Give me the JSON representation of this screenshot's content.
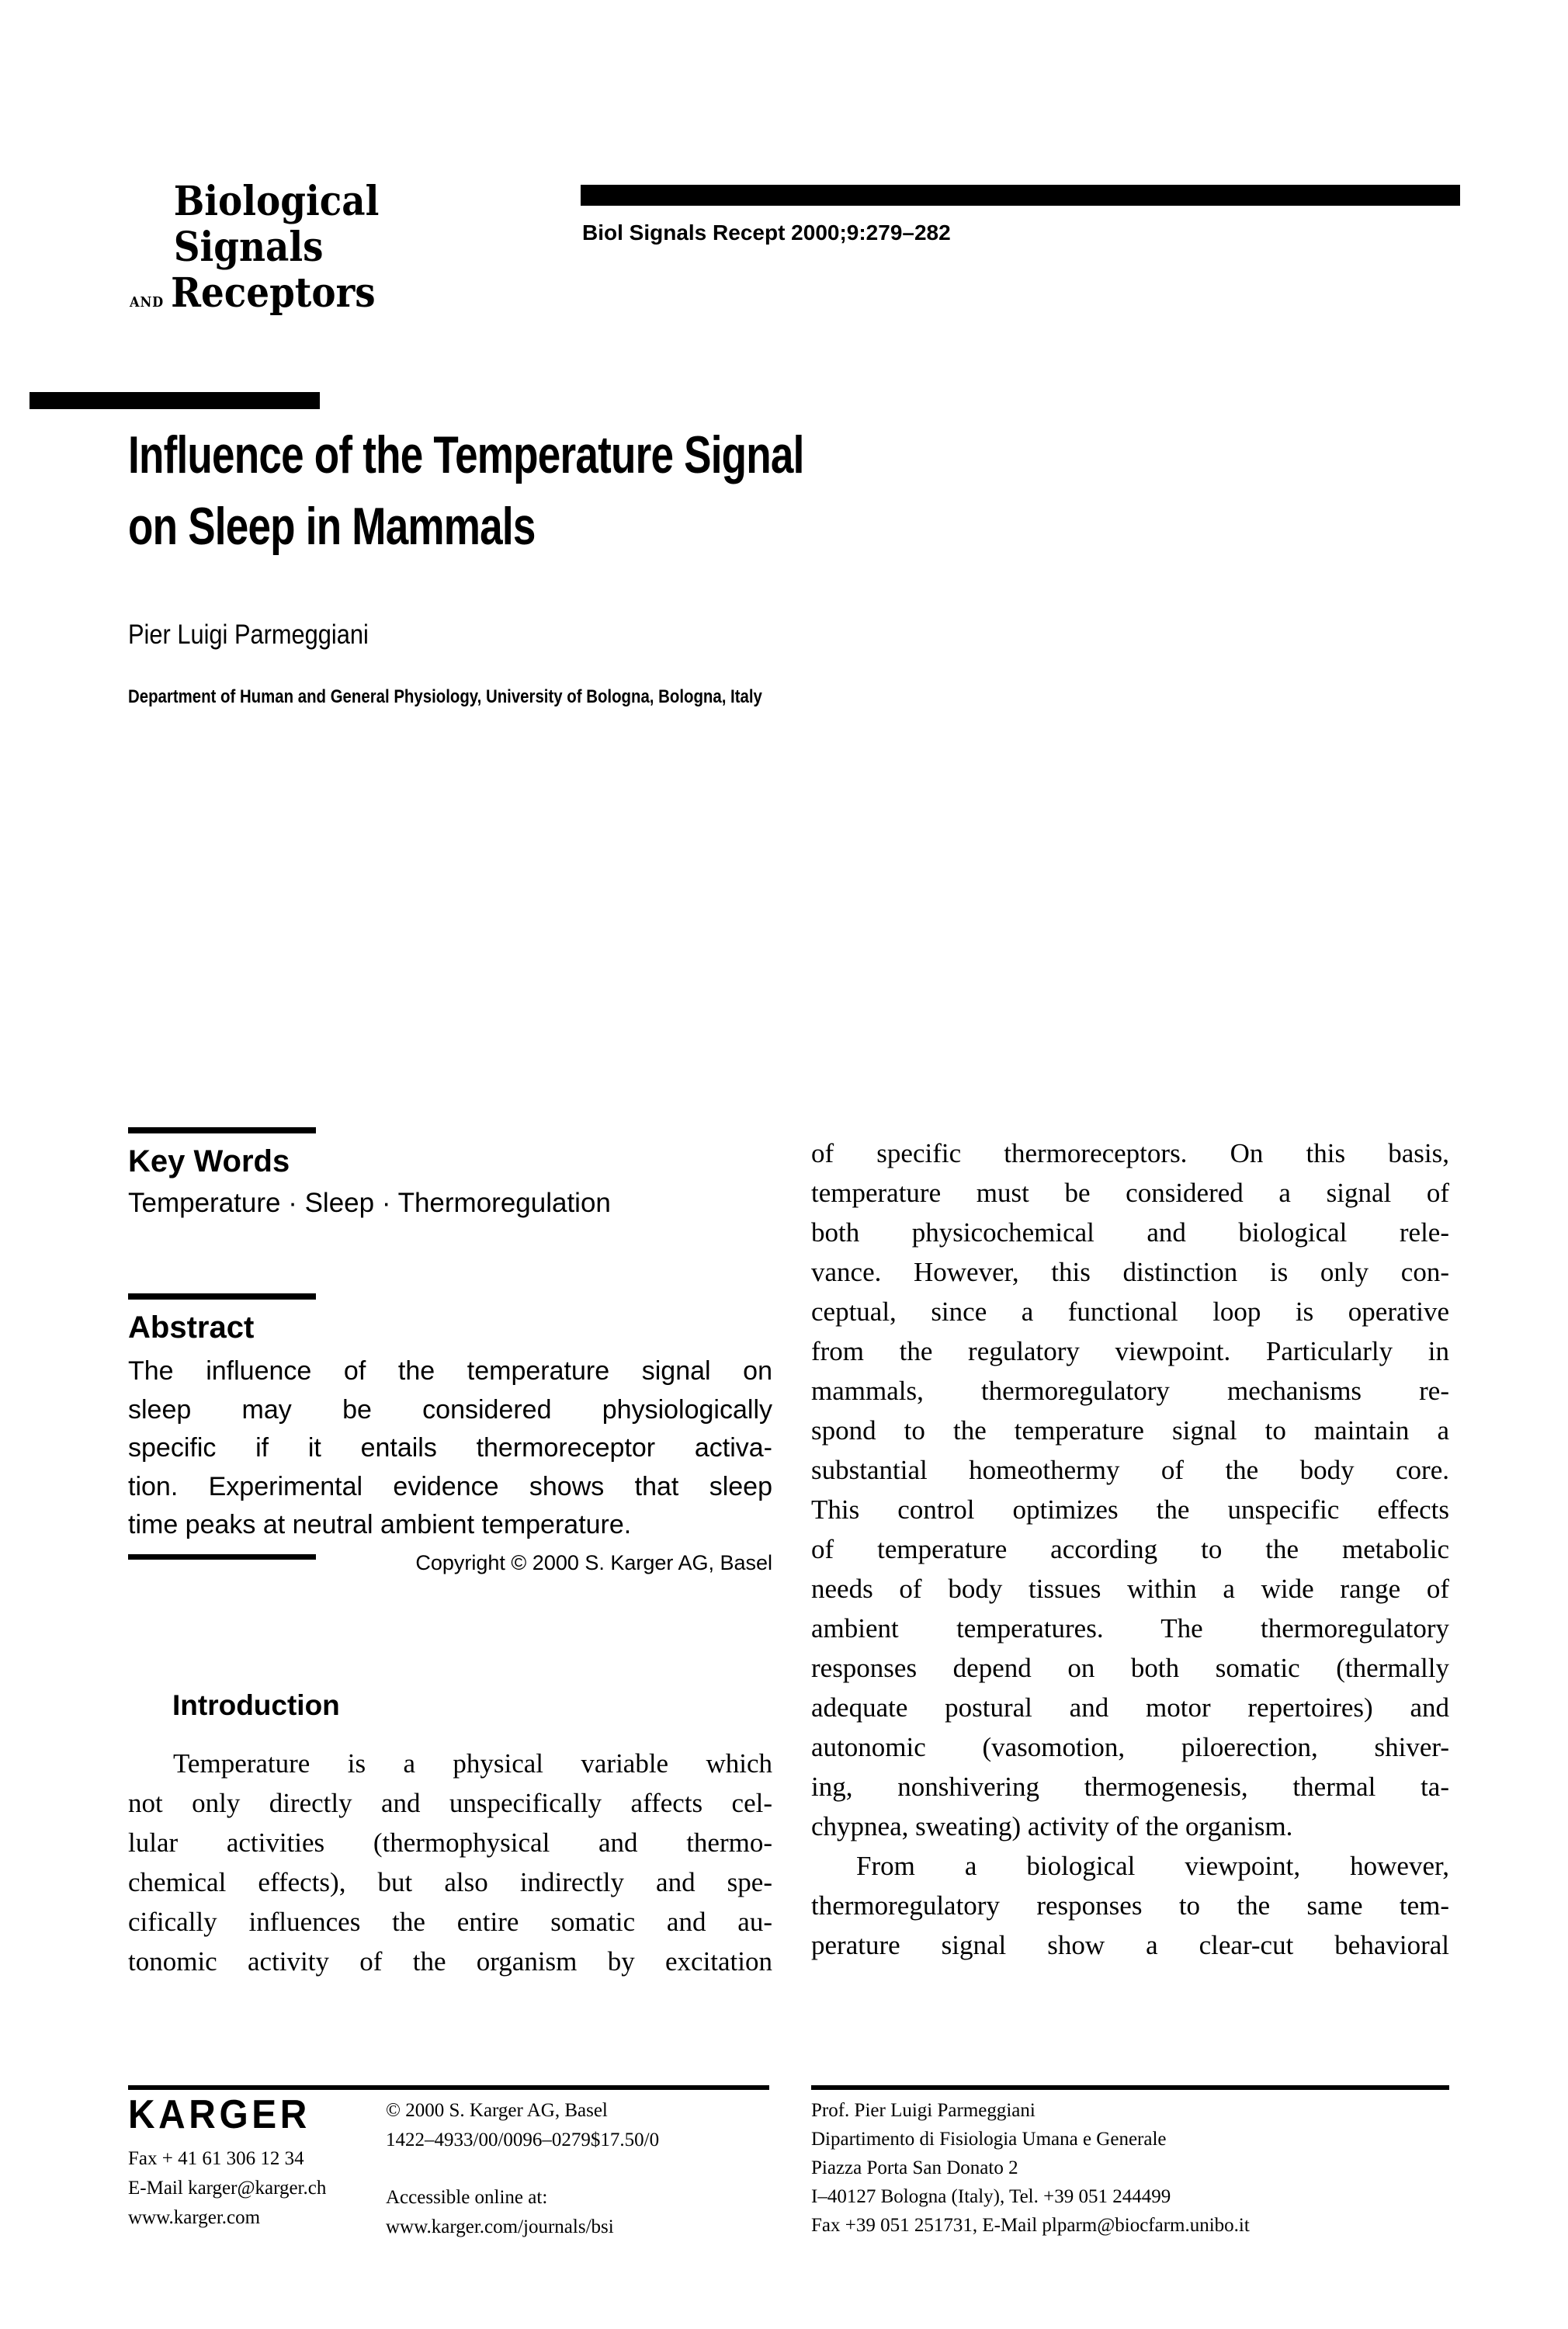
{
  "journal": {
    "logo_line1": "Biological",
    "logo_line2": "Signals",
    "logo_and": "and",
    "logo_line3": "Receptors",
    "citation": "Biol Signals Recept 2000;9:279–282"
  },
  "article": {
    "title_line1": "Influence of the Temperature Signal",
    "title_line2": "on Sleep in Mammals",
    "author": "Pier Luigi Parmeggiani",
    "affiliation": "Department of Human and General Physiology, University of Bologna, Bologna, Italy"
  },
  "keywords": {
    "heading": "Key Words",
    "terms": "Temperature · Sleep · Thermoregulation"
  },
  "abstract": {
    "heading": "Abstract",
    "paragraphs": [
      {
        "indent": false,
        "flush_last": false,
        "lines": [
          "The influence of the temperature signal on",
          "sleep may be considered physiologically",
          "specific if it entails thermoreceptor activa-",
          "tion. Experimental evidence shows that sleep",
          "time peaks at neutral ambient temperature."
        ]
      }
    ],
    "copyright": "Copyright © 2000 S. Karger AG, Basel"
  },
  "introduction": {
    "heading": "Introduction",
    "paragraphs": [
      {
        "indent": true,
        "flush_last": true,
        "lines": [
          "Temperature is a physical variable which",
          "not only directly and unspecifically affects cel-",
          "lular activities (thermophysical and thermo-",
          "chemical effects), but also indirectly and spe-",
          "cifically influences the entire somatic and au-",
          "tonomic activity of the organism by excitation"
        ]
      }
    ]
  },
  "right_column": {
    "paragraphs": [
      {
        "indent": false,
        "flush_last": false,
        "lines": [
          "of specific thermoreceptors. On this basis,",
          "temperature must be considered a signal of",
          "both physicochemical and biological rele-",
          "vance. However, this distinction is only con-",
          "ceptual, since a functional loop is operative",
          "from the regulatory viewpoint. Particularly in",
          "mammals, thermoregulatory mechanisms re-",
          "spond to the temperature signal to maintain a",
          "substantial homeothermy of the body core.",
          "This control optimizes the unspecific effects",
          "of temperature according to the metabolic",
          "needs of body tissues within a wide range of",
          "ambient temperatures. The thermoregulatory",
          "responses depend on both somatic (thermally",
          "adequate postural and motor repertoires) and",
          "autonomic (vasomotion, piloerection, shiver-",
          "ing, nonshivering thermogenesis, thermal ta-",
          "chypnea, sweating) activity of the organism."
        ]
      },
      {
        "indent": true,
        "flush_last": true,
        "lines": [
          "From a biological viewpoint, however,",
          "thermoregulatory responses to the same tem-",
          "perature signal show a clear-cut behavioral"
        ]
      }
    ]
  },
  "footer": {
    "publisher": {
      "logo": "KARGER",
      "fax": "Fax + 41 61 306 12 34",
      "email": "E-Mail karger@karger.ch",
      "web": "www.karger.com"
    },
    "rights": {
      "copyright": "© 2000 S. Karger AG, Basel",
      "issn_code": "1422–4933/00/0096–0279$17.50/0",
      "online_label": "Accessible online at:",
      "online_url": "www.karger.com/journals/bsi"
    },
    "correspondence": {
      "lines": [
        "Prof. Pier Luigi Parmeggiani",
        "Dipartimento di Fisiologia Umana e Generale",
        "Piazza Porta San Donato 2",
        "I–40127 Bologna (Italy), Tel. +39 051 244499",
        "Fax +39 051 251731, E-Mail plparm@biocfarm.unibo.it"
      ]
    }
  }
}
